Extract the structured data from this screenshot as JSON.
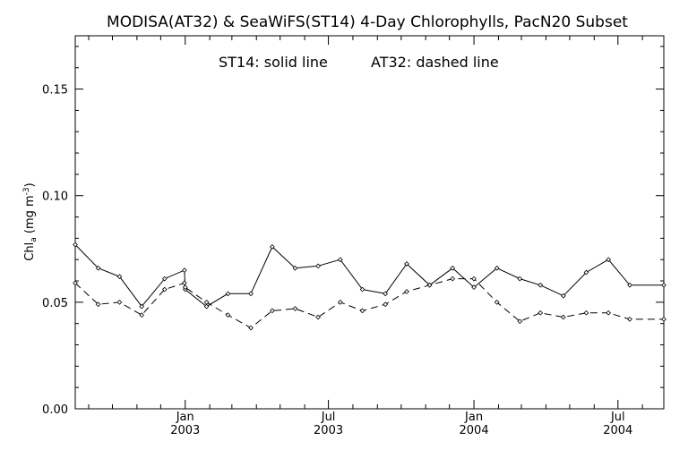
{
  "chart_data": {
    "type": "line",
    "title": "MODISA(AT32) & SeaWiFS(ST14) 4-Day Chlorophylls, PacN20 Subset",
    "annotation": {
      "st14": "ST14: solid line",
      "at32": "AT32: dashed line"
    },
    "ylabel": {
      "main": "Chl",
      "sub": "a",
      "unit_open": " (mg m",
      "unit_sup": "-3",
      "unit_close": ")"
    },
    "xlim": [
      "2002-08-15",
      "2004-08-28"
    ],
    "ylim": [
      0,
      0.175
    ],
    "yticks": [
      "0.00",
      "0.05",
      "0.10",
      "0.15"
    ],
    "xticks": [
      {
        "date": "2003-01-01",
        "month": "Jan",
        "year": "2003"
      },
      {
        "date": "2003-07-01",
        "month": "Jul",
        "year": "2003"
      },
      {
        "date": "2004-01-01",
        "month": "Jan",
        "year": "2004"
      },
      {
        "date": "2004-07-01",
        "month": "Jul",
        "year": "2004"
      }
    ],
    "series": [
      {
        "name": "ST14",
        "style": "solid",
        "x": [
          "2002-08-15",
          "2002-09-13",
          "2002-10-10",
          "2002-11-07",
          "2002-12-06",
          "2002-12-31",
          "2003-01-01",
          "2003-01-28",
          "2003-02-24",
          "2003-03-25",
          "2003-04-21",
          "2003-05-20",
          "2003-06-18",
          "2003-07-16",
          "2003-08-13",
          "2003-09-11",
          "2003-10-08",
          "2003-11-06",
          "2003-12-05",
          "2004-01-01",
          "2004-01-30",
          "2004-02-28",
          "2004-03-25",
          "2004-04-23",
          "2004-05-22",
          "2004-06-19",
          "2004-07-16",
          "2004-08-28"
        ],
        "y": [
          0.077,
          0.066,
          0.062,
          0.048,
          0.061,
          0.065,
          0.056,
          0.048,
          0.054,
          0.054,
          0.076,
          0.066,
          0.067,
          0.07,
          0.056,
          0.054,
          0.068,
          0.058,
          0.066,
          0.057,
          0.066,
          0.061,
          0.058,
          0.053,
          0.064,
          0.07,
          0.058,
          0.058
        ]
      },
      {
        "name": "AT32",
        "style": "dashed",
        "x": [
          "2002-08-15",
          "2002-09-13",
          "2002-10-10",
          "2002-11-07",
          "2002-12-06",
          "2002-12-31",
          "2003-01-01",
          "2003-01-28",
          "2003-02-24",
          "2003-03-25",
          "2003-04-21",
          "2003-05-20",
          "2003-06-18",
          "2003-07-16",
          "2003-08-13",
          "2003-09-11",
          "2003-10-08",
          "2003-11-06",
          "2003-12-05",
          "2004-01-01",
          "2004-01-30",
          "2004-02-28",
          "2004-03-25",
          "2004-04-23",
          "2004-05-22",
          "2004-06-19",
          "2004-07-16",
          "2004-08-28"
        ],
        "y": [
          0.059,
          0.049,
          0.05,
          0.044,
          0.056,
          0.059,
          0.057,
          0.05,
          0.044,
          0.038,
          0.046,
          0.047,
          0.043,
          0.05,
          0.046,
          0.049,
          0.055,
          0.058,
          0.061,
          0.061,
          0.05,
          0.041,
          0.045,
          0.043,
          0.045,
          0.045,
          0.042,
          0.042
        ]
      }
    ]
  }
}
